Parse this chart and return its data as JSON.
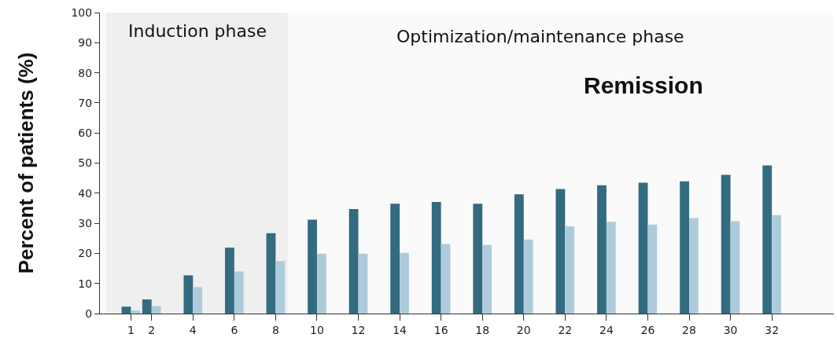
{
  "chart_data": {
    "type": "bar",
    "ylabel": "Percent of patients (%)",
    "x": [
      1,
      2,
      4,
      6,
      8,
      10,
      12,
      14,
      16,
      18,
      20,
      22,
      24,
      26,
      28,
      30,
      32
    ],
    "series": [
      {
        "color": "#336b80",
        "values": [
          2.3,
          4.7,
          12.7,
          21.9,
          26.7,
          31.2,
          34.7,
          36.5,
          37.1,
          36.5,
          39.6,
          41.4,
          42.6,
          43.5,
          43.9,
          46.1,
          49.2
        ]
      },
      {
        "color": "#aecbdb",
        "values": [
          1.0,
          2.5,
          8.8,
          14.0,
          17.4,
          19.9,
          19.9,
          20.2,
          23.1,
          22.8,
          24.6,
          29.0,
          30.5,
          29.6,
          31.7,
          30.7,
          32.7
        ]
      }
    ],
    "xlim": [
      -0.5,
      35
    ],
    "xticks": [
      1,
      2,
      4,
      6,
      8,
      10,
      12,
      14,
      16,
      18,
      20,
      22,
      24,
      26,
      28,
      30,
      32
    ],
    "ylim": [
      0,
      100
    ],
    "yticks": [
      0,
      10,
      20,
      30,
      40,
      50,
      60,
      70,
      80,
      90,
      100
    ],
    "bands": [
      {
        "axis": "x",
        "from": -0.2,
        "to": 8.6,
        "label": "Induction phase",
        "color": "#efefef"
      }
    ],
    "annotations": [
      "Optimization/maintenance phase",
      "Remission"
    ],
    "grid": false
  }
}
